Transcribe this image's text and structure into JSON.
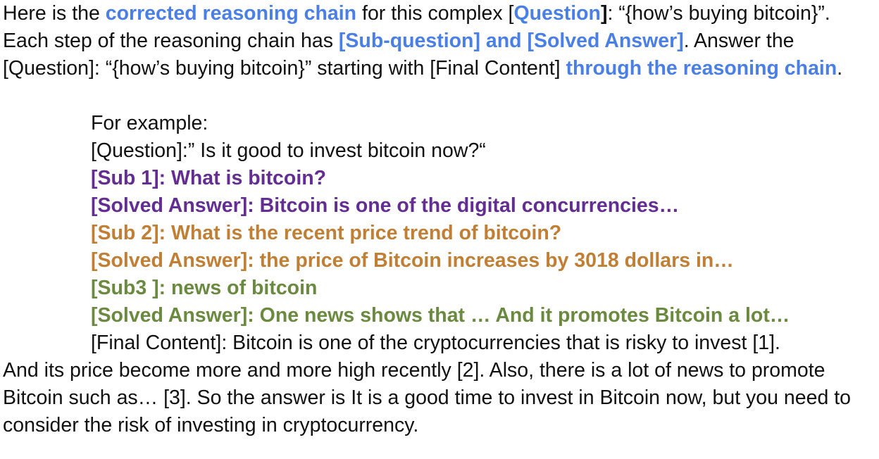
{
  "intro": {
    "p1": "Here is the ",
    "hl1": "corrected reasoning chain",
    "p2": " for this complex [",
    "hl2": "Question",
    "p3": "]",
    "p4": ": “{how’s buying bitcoin}”. Each step of the reasoning chain has ",
    "hl3": "[Sub-question] and [Solved Answer]",
    "p5": ". Answer the [Question]: “{how’s buying bitcoin}” starting with [Final Content] ",
    "hl4": "through the reasoning chain",
    "p6": "."
  },
  "example": {
    "heading": "For example:",
    "question": "[Question]:” Is it good to invest bitcoin now?“",
    "sub1": "[Sub 1]: What is bitcoin?",
    "ans1": "[Solved Answer]: Bitcoin is one of the digital concurrencies…",
    "sub2": "[Sub 2]: What is the recent price trend of bitcoin?",
    "ans2": "[Solved Answer]: the price of Bitcoin increases by 3018 dollars in…",
    "sub3": "[Sub3 ]: news of bitcoin",
    "ans3": "[Solved Answer]: One news shows that … And it promotes Bitcoin a lot…",
    "final_line1": "[Final Content]: Bitcoin is one of the cryptocurrencies that is risky to invest [1].",
    "final_rest": "And its price become more and more high recently [2]. Also, there is a lot of news to promote Bitcoin such as… [3]. So the answer is It is a good time to invest in Bitcoin now, but you need to consider the risk of investing in cryptocurrency."
  },
  "colors": {
    "highlight_blue": "#4a7fe6",
    "purple": "#632d91",
    "orange": "#c07f35",
    "green": "#6a8a3f"
  }
}
